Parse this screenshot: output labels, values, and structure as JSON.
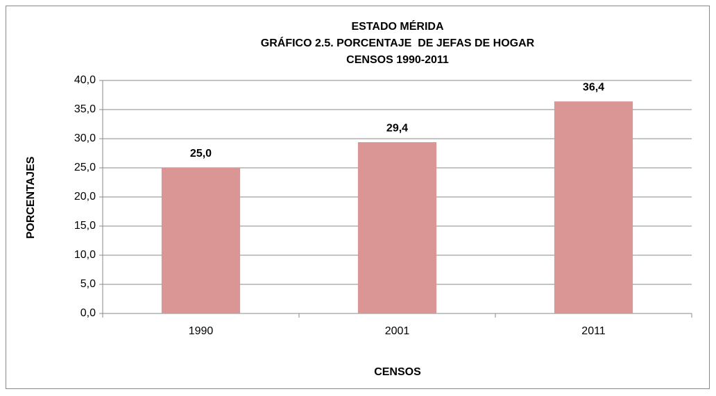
{
  "chart_data": {
    "type": "bar",
    "title": [
      "ESTADO MÉRIDA",
      "GRÁFICO 2.5. PORCENTAJE  DE JEFAS DE HOGAR",
      "CENSOS 1990-2011"
    ],
    "x_label": "CENSOS",
    "y_label": "PORCENTAJES",
    "categories": [
      "1990",
      "2001",
      "2011"
    ],
    "values": [
      25.0,
      29.4,
      36.4
    ],
    "value_labels": [
      "25,0",
      "29,4",
      "36,4"
    ],
    "color": "#d99694",
    "ylim": [
      0,
      40
    ],
    "yticks": [
      {
        "value": 0,
        "label": "0,0"
      },
      {
        "value": 5,
        "label": "5,0"
      },
      {
        "value": 10,
        "label": "10,0"
      },
      {
        "value": 15,
        "label": "15,0"
      },
      {
        "value": 20,
        "label": "20,0"
      },
      {
        "value": 25,
        "label": "25,0"
      },
      {
        "value": 30,
        "label": "30,0"
      },
      {
        "value": 35,
        "label": "35,0"
      },
      {
        "value": 40,
        "label": "40,0"
      }
    ],
    "grid": true
  }
}
